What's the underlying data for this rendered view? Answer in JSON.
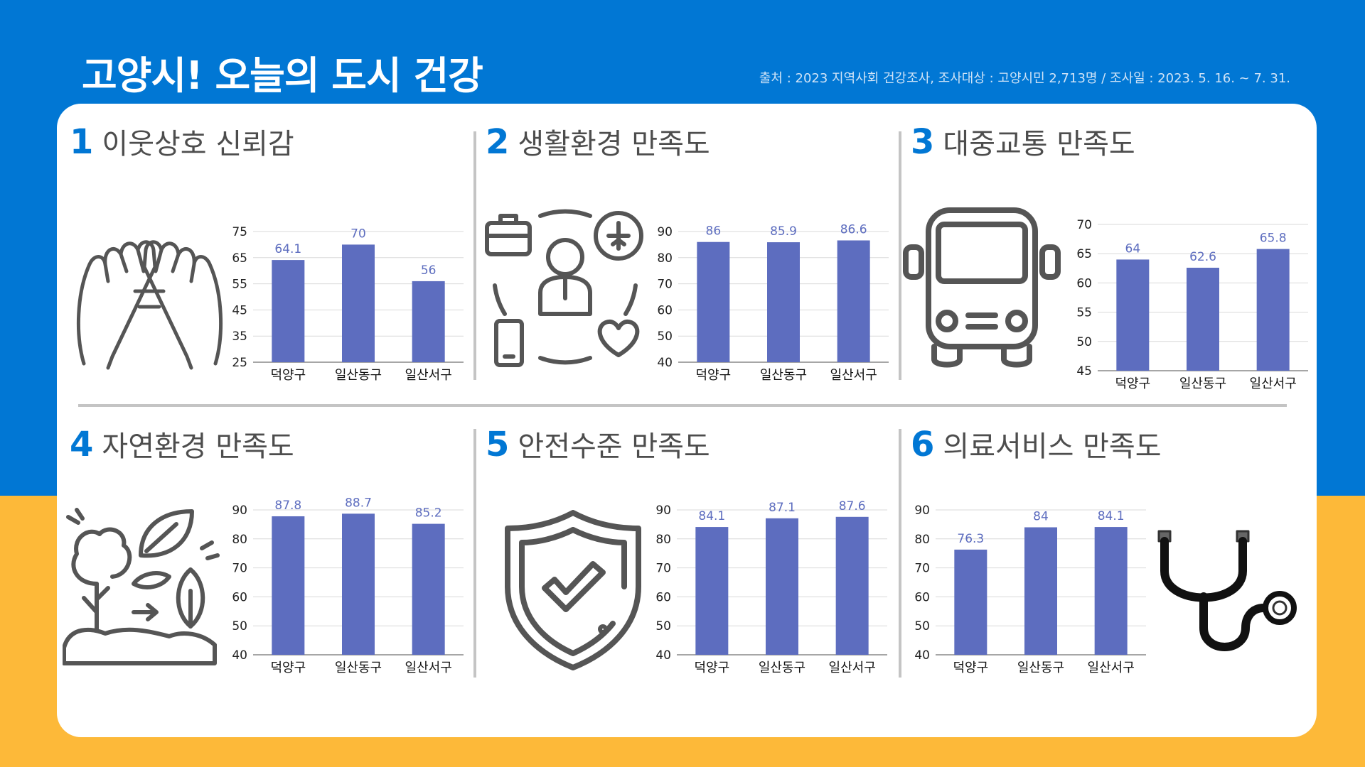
{
  "header": {
    "title": "고양시! 오늘의 도시 건강",
    "source": "출처 : 2023 지역사회 건강조사, 조사대상 : 고양시민 2,713명 / 조사일 : 2023. 5. 16. ~ 7. 31."
  },
  "colors": {
    "bar": "#5d6dbf",
    "label": "#5d6dbf",
    "header_bg": "#0177d4",
    "accent_bg": "#fdb939",
    "icon": "#555555"
  },
  "panels": [
    {
      "num": "1",
      "title": "이웃상호 신뢰감",
      "icon": "pinky-promise-icon"
    },
    {
      "num": "2",
      "title": "생활환경 만족도",
      "icon": "lifestyle-person-icon"
    },
    {
      "num": "3",
      "title": "대중교통 만족도",
      "icon": "bus-icon"
    },
    {
      "num": "4",
      "title": "자연환경 만족도",
      "icon": "nature-plants-icon"
    },
    {
      "num": "5",
      "title": "안전수준 만족도",
      "icon": "shield-check-icon"
    },
    {
      "num": "6",
      "title": "의료서비스 만족도",
      "icon": "stethoscope-icon"
    }
  ],
  "chart_data": [
    {
      "type": "bar",
      "title": "이웃상호 신뢰감",
      "categories": [
        "덕양구",
        "일산동구",
        "일산서구"
      ],
      "values": [
        64.1,
        70,
        56
      ],
      "ylim": [
        25,
        75
      ],
      "yticks": [
        25,
        35,
        45,
        55,
        65,
        75
      ],
      "grid": true
    },
    {
      "type": "bar",
      "title": "생활환경 만족도",
      "categories": [
        "덕양구",
        "일산동구",
        "일산서구"
      ],
      "values": [
        86,
        85.9,
        86.6
      ],
      "ylim": [
        40,
        90
      ],
      "yticks": [
        40,
        50,
        60,
        70,
        80,
        90
      ],
      "grid": true
    },
    {
      "type": "bar",
      "title": "대중교통 만족도",
      "categories": [
        "덕양구",
        "일산동구",
        "일산서구"
      ],
      "values": [
        64,
        62.6,
        65.8
      ],
      "ylim": [
        45,
        70
      ],
      "yticks": [
        45,
        50,
        55,
        60,
        65,
        70
      ],
      "grid": true
    },
    {
      "type": "bar",
      "title": "자연환경 만족도",
      "categories": [
        "덕양구",
        "일산동구",
        "일산서구"
      ],
      "values": [
        87.8,
        88.7,
        85.2
      ],
      "ylim": [
        40,
        90
      ],
      "yticks": [
        40,
        50,
        60,
        70,
        80,
        90
      ],
      "grid": true
    },
    {
      "type": "bar",
      "title": "안전수준 만족도",
      "categories": [
        "덕양구",
        "일산동구",
        "일산서구"
      ],
      "values": [
        84.1,
        87.1,
        87.6
      ],
      "ylim": [
        40,
        90
      ],
      "yticks": [
        40,
        50,
        60,
        70,
        80,
        90
      ],
      "grid": true
    },
    {
      "type": "bar",
      "title": "의료서비스 만족도",
      "categories": [
        "덕양구",
        "일산동구",
        "일산서구"
      ],
      "values": [
        76.3,
        84,
        84.1
      ],
      "ylim": [
        40,
        90
      ],
      "yticks": [
        40,
        50,
        60,
        70,
        80,
        90
      ],
      "grid": true
    }
  ]
}
